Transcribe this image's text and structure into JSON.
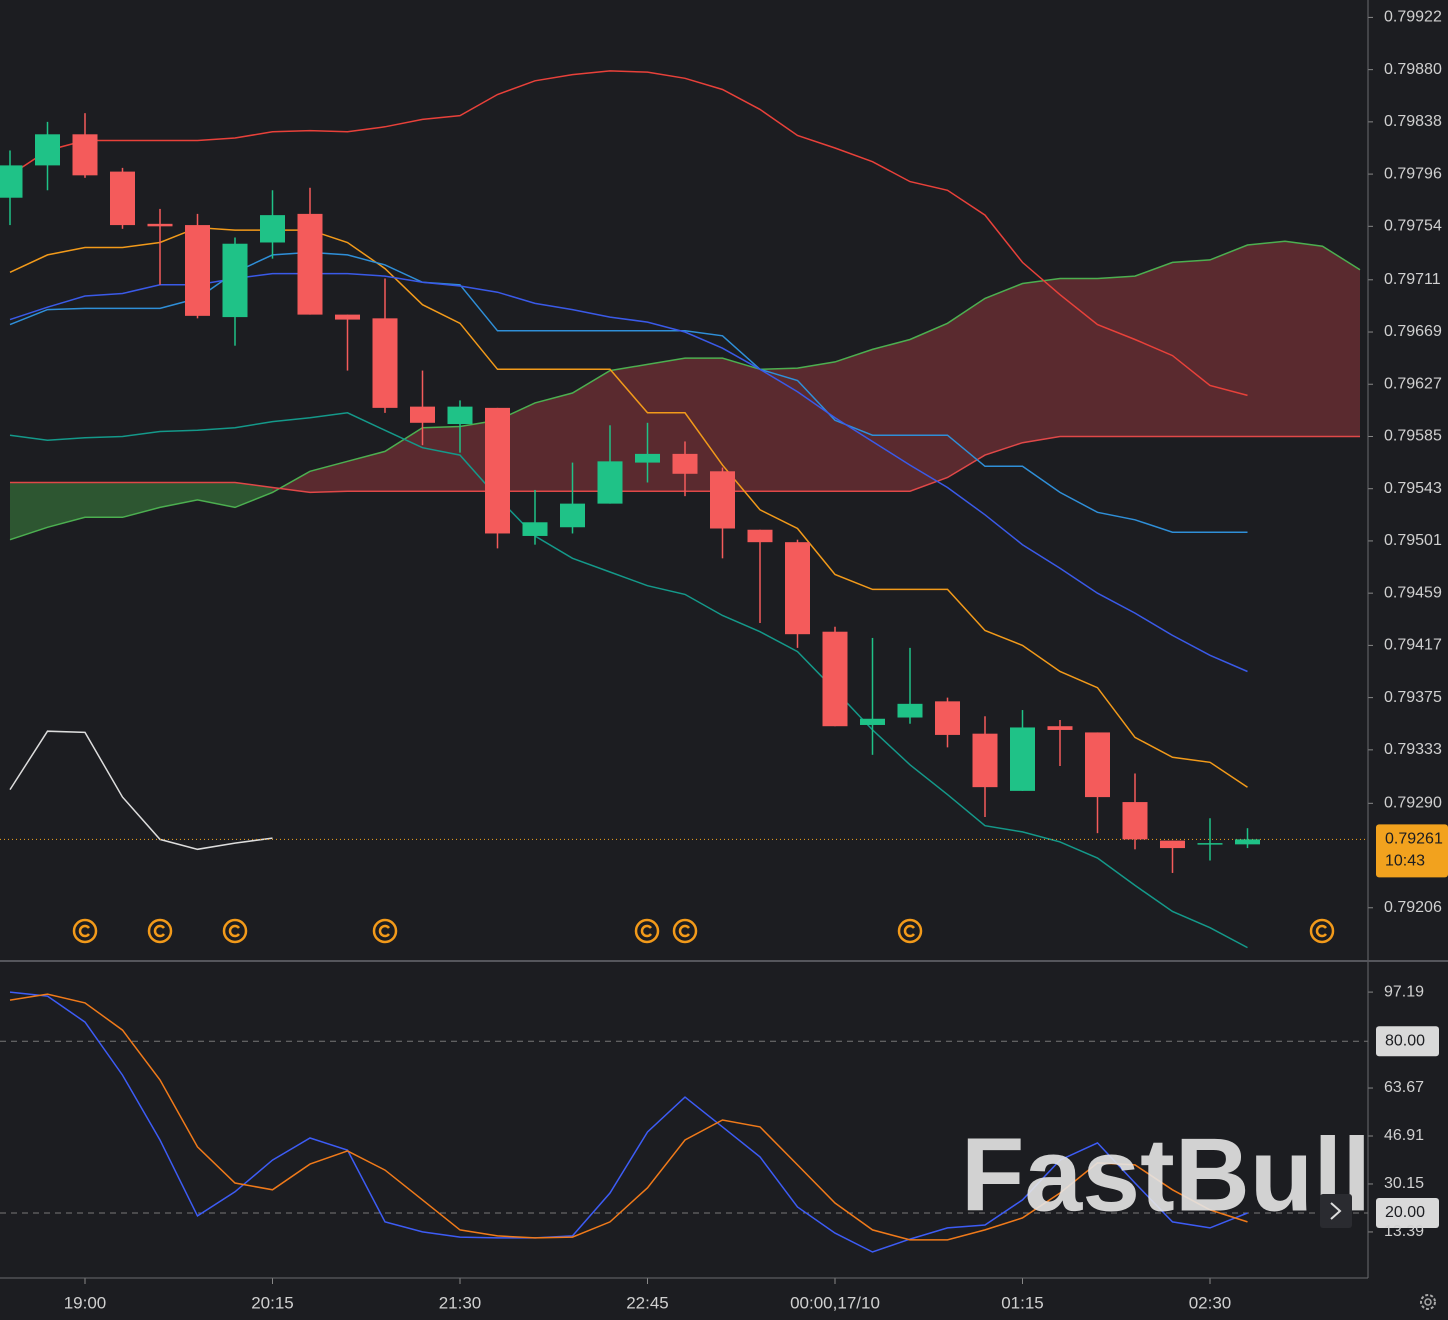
{
  "chart_data": [
    {
      "type": "candlestick",
      "categories": [
        null,
        null,
        "19:00",
        null,
        null,
        null,
        null,
        "20:15",
        null,
        null,
        null,
        null,
        "21:30",
        null,
        null,
        null,
        null,
        "22:45",
        null,
        null,
        null,
        null,
        "00:00,17/10",
        null,
        null,
        null,
        null,
        "01:15",
        null,
        null,
        null,
        null,
        "02:30",
        null
      ],
      "open": [
        0.79777,
        0.79803,
        0.79828,
        0.79798,
        0.79756,
        0.79755,
        0.79681,
        0.79741,
        0.79764,
        0.79683,
        0.7968,
        0.79609,
        0.79595,
        0.79608,
        0.79505,
        0.79512,
        0.79531,
        0.79564,
        0.79571,
        0.79557,
        0.7951,
        0.795,
        0.79428,
        0.79353,
        0.79359,
        0.79372,
        0.79346,
        0.793,
        0.79352,
        0.79347,
        0.79291,
        0.7926,
        0.79257,
        0.79257
      ],
      "high": [
        0.79815,
        0.79838,
        0.79845,
        0.79801,
        0.79768,
        0.79764,
        0.79745,
        0.79783,
        0.79785,
        0.79683,
        0.79712,
        0.79638,
        0.79614,
        0.79608,
        0.79542,
        0.79564,
        0.79594,
        0.79596,
        0.79581,
        0.7956,
        0.7951,
        0.79502,
        0.79432,
        0.79423,
        0.79415,
        0.79375,
        0.7936,
        0.79365,
        0.79357,
        0.79347,
        0.79314,
        0.7926,
        0.79278,
        0.7927
      ],
      "low": [
        0.79755,
        0.79783,
        0.79793,
        0.79752,
        0.79707,
        0.7968,
        0.79658,
        0.79728,
        0.79683,
        0.79638,
        0.79604,
        0.79578,
        0.79572,
        0.79495,
        0.79498,
        0.79507,
        0.79531,
        0.79548,
        0.79537,
        0.79487,
        0.79435,
        0.79415,
        0.79352,
        0.79329,
        0.79354,
        0.79335,
        0.79279,
        0.793,
        0.7932,
        0.79266,
        0.79253,
        0.79234,
        0.79244,
        0.79254
      ],
      "close": [
        0.79803,
        0.79828,
        0.79795,
        0.79755,
        0.79754,
        0.79682,
        0.7974,
        0.79763,
        0.79683,
        0.79679,
        0.79608,
        0.79596,
        0.79609,
        0.79507,
        0.79516,
        0.79531,
        0.79565,
        0.79571,
        0.79555,
        0.79511,
        0.795,
        0.79426,
        0.79352,
        0.79358,
        0.7937,
        0.79345,
        0.79303,
        0.79351,
        0.79349,
        0.79295,
        0.79261,
        0.79254,
        0.79258,
        0.79261
      ],
      "up_color": "#1fc287",
      "down_color": "#f45b5b",
      "lines": [
        {
          "color": "#e8413a",
          "values": [
            0.79795,
            0.79815,
            0.79823,
            0.79823,
            0.79823,
            0.79823,
            0.79825,
            0.7983,
            0.79831,
            0.7983,
            0.79834,
            0.7984,
            0.79843,
            0.7986,
            0.79871,
            0.79876,
            0.79879,
            0.79878,
            0.79873,
            0.79864,
            0.79848,
            0.79827,
            0.79817,
            0.79806,
            0.7979,
            0.79783,
            0.79763,
            0.79725,
            0.79699,
            0.79675,
            0.79663,
            0.7965,
            0.79626,
            0.79618
          ]
        },
        {
          "color": "#14998a",
          "values": [
            0.79586,
            0.79582,
            0.79584,
            0.79585,
            0.79589,
            0.7959,
            0.79592,
            0.79597,
            0.796,
            0.79604,
            0.7959,
            0.79576,
            0.7957,
            0.79536,
            0.79505,
            0.79487,
            0.79476,
            0.79465,
            0.79458,
            0.79441,
            0.79428,
            0.79412,
            0.79381,
            0.79349,
            0.79321,
            0.79297,
            0.79272,
            0.79267,
            0.79259,
            0.79246,
            0.79224,
            0.79203,
            0.7919,
            0.79174
          ]
        },
        {
          "color": "#f29a1a",
          "values": [
            0.79717,
            0.79731,
            0.79737,
            0.79737,
            0.79741,
            0.79753,
            0.79751,
            0.79751,
            0.79751,
            0.79741,
            0.7972,
            0.79691,
            0.79676,
            0.79639,
            0.79639,
            0.79639,
            0.79639,
            0.79604,
            0.79604,
            0.79562,
            0.79526,
            0.79511,
            0.79474,
            0.79462,
            0.79462,
            0.79462,
            0.79429,
            0.79417,
            0.79396,
            0.79383,
            0.79343,
            0.79327,
            0.79323,
            0.79303
          ]
        },
        {
          "color": "#2f8fd8",
          "values": [
            0.79675,
            0.79687,
            0.79688,
            0.79688,
            0.79688,
            0.79696,
            0.79717,
            0.79731,
            0.79733,
            0.79731,
            0.79723,
            0.79709,
            0.79707,
            0.7967,
            0.7967,
            0.7967,
            0.7967,
            0.7967,
            0.7967,
            0.79666,
            0.79639,
            0.7963,
            0.79598,
            0.79586,
            0.79586,
            0.79586,
            0.79561,
            0.79561,
            0.7954,
            0.79524,
            0.79518,
            0.79508,
            0.79508,
            0.79508
          ]
        },
        {
          "color": "#3a5ae8",
          "values": [
            0.79679,
            0.79689,
            0.79698,
            0.797,
            0.79707,
            0.79707,
            0.79712,
            0.79716,
            0.79716,
            0.79716,
            0.79714,
            0.79709,
            0.79706,
            0.79701,
            0.79692,
            0.79687,
            0.79681,
            0.79677,
            0.79669,
            0.79656,
            0.79639,
            0.79621,
            0.796,
            0.79581,
            0.79562,
            0.79544,
            0.79522,
            0.79498,
            0.79479,
            0.79459,
            0.79443,
            0.79425,
            0.79409,
            0.79396
          ]
        },
        {
          "color": "#dddddd",
          "values": [
            0.79301,
            0.79348,
            0.79347,
            0.79295,
            0.79261,
            0.79253,
            0.79258,
            0.79262
          ]
        }
      ],
      "cloud": {
        "up_fill": "#2e5a33",
        "down_fill": "#5e2b30",
        "span_a": {
          "color": "#4caf50",
          "values": [
            0.79502,
            0.79512,
            0.7952,
            0.7952,
            0.79528,
            0.79534,
            0.79528,
            0.7954,
            0.79557,
            0.79565,
            0.79573,
            0.79592,
            0.79593,
            0.79598,
            0.79612,
            0.7962,
            0.79638,
            0.79643,
            0.79648,
            0.79648,
            0.79639,
            0.7964,
            0.79645,
            0.79655,
            0.79663,
            0.79676,
            0.79696,
            0.79708,
            0.79712,
            0.79712,
            0.79714,
            0.79725,
            0.79727,
            0.79739,
            0.79742,
            0.79738,
            0.79719
          ]
        },
        "span_b": {
          "color": "#e04848",
          "values": [
            0.79548,
            0.79548,
            0.79548,
            0.79548,
            0.79548,
            0.79548,
            0.79548,
            0.79544,
            0.7954,
            0.79541,
            0.79541,
            0.79541,
            0.79541,
            0.79541,
            0.79541,
            0.79541,
            0.79541,
            0.79541,
            0.79541,
            0.79541,
            0.79541,
            0.79541,
            0.79541,
            0.79541,
            0.79541,
            0.79552,
            0.7957,
            0.7958,
            0.79585,
            0.79585,
            0.79585,
            0.79585,
            0.79585,
            0.79585,
            0.79585,
            0.79585,
            0.79585
          ]
        }
      },
      "last_price": 0.79261,
      "countdown": "10:43",
      "last_color": "#f2a21e",
      "ylim": [
        0.79164,
        0.79936
      ],
      "yticks": [
        0.79922,
        {
          "value": 0.7988,
          "label": "0.79880"
        },
        0.79838,
        0.79796,
        0.79754,
        0.79711,
        0.79669,
        0.79627,
        0.79585,
        0.79543,
        0.79501,
        0.79459,
        0.79417,
        0.79375,
        0.79333,
        {
          "value": 0.7929,
          "label": "0.79290"
        },
        0.79206
      ]
    },
    {
      "type": "line",
      "series": [
        {
          "color": "#3d5cf5",
          "values": [
            97.2,
            95.8,
            86.7,
            68.2,
            45.5,
            19.0,
            27.4,
            38.5,
            46.2,
            42.0,
            16.9,
            13.4,
            11.6,
            11.3,
            11.3,
            12.0,
            27.0,
            48.3,
            60.5,
            50.1,
            39.6,
            22.1,
            13.0,
            6.4,
            10.9,
            14.8,
            15.8,
            24.6,
            38.5,
            44.5,
            30.5,
            16.9,
            14.8,
            20.0
          ]
        },
        {
          "color": "#f07a1a",
          "values": [
            94.4,
            96.5,
            93.4,
            83.9,
            66.5,
            43.1,
            30.5,
            28.1,
            37.1,
            41.7,
            35.0,
            24.6,
            14.1,
            12.0,
            11.3,
            11.6,
            16.9,
            28.8,
            45.5,
            52.5,
            50.1,
            36.8,
            23.5,
            14.1,
            10.6,
            10.6,
            14.1,
            18.3,
            27.0,
            37.5,
            36.8,
            28.1,
            21.1,
            16.9
          ]
        }
      ],
      "ylim": [
        -2.7,
        107.7
      ],
      "yticks": [
        97.19,
        {
          "value": 80,
          "label": "80.00"
        },
        63.67,
        46.91,
        30.15,
        {
          "value": 20,
          "label": "20.00"
        },
        13.39
      ]
    }
  ],
  "watermark": "FastBull"
}
